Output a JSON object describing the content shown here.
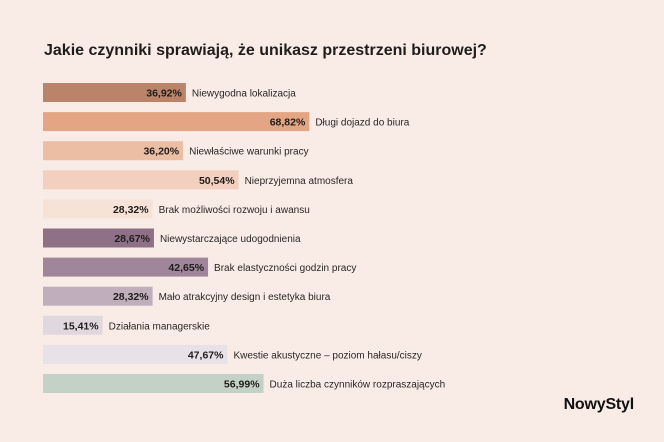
{
  "brand": "NowyStyl",
  "chart_data": {
    "type": "bar",
    "orientation": "horizontal",
    "title": "Jakie czynniki sprawiają, że unikasz przestrzeni biurowej?",
    "xlabel": "",
    "ylabel": "",
    "xlim": [
      0,
      100
    ],
    "grid": false,
    "legend": "none",
    "unit": "%",
    "categories": [
      "Niewygodna lokalizacja",
      "Długi dojazd do biura",
      "Niewłaściwe warunki pracy",
      "Nieprzyjemna atmosfera",
      "Brak możliwości rozwoju i awansu",
      "Niewystarczające udogodnienia",
      "Brak elastyczności godzin pracy",
      "Mało atrakcyjny design i estetyka biura",
      "Działania managerskie",
      "Kwestie akustyczne – poziom hałasu/ciszy",
      "Duża liczba czynników rozpraszających"
    ],
    "values": [
      36.92,
      68.82,
      36.2,
      50.54,
      28.32,
      28.67,
      42.65,
      28.32,
      15.41,
      47.67,
      56.99
    ],
    "value_labels": [
      "36,92%",
      "68,82%",
      "36,20%",
      "50,54%",
      "28,32%",
      "28,67%",
      "42,65%",
      "28,32%",
      "15,41%",
      "47,67%",
      "56,99%"
    ],
    "colors": [
      "#b9846a",
      "#e3a584",
      "#ecbea4",
      "#f2cfbe",
      "#f7e2d8",
      "#8f7187",
      "#a0869b",
      "#c0aebd",
      "#e1d7df",
      "#e9e1e8",
      "#c3d1c6"
    ]
  }
}
